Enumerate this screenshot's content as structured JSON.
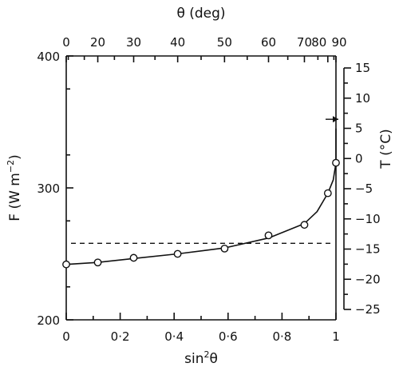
{
  "chart_data": {
    "type": "scatter",
    "title": "",
    "xlabel": "sin",
    "xlabel_sup": "2",
    "xlabel_tail": "θ",
    "ylabel": "F (W m",
    "ylabel_sup": "−2",
    "ylabel_tail": ")",
    "top_xlabel": "θ (deg)",
    "right_ylabel": "T (°C)",
    "xlim": [
      0,
      1
    ],
    "ylim": [
      200,
      400
    ],
    "right_ylim": [
      -25,
      15
    ],
    "x_ticks": [
      "0",
      "0·2",
      "0·4",
      "0·6",
      "0·8",
      "1"
    ],
    "x_tick_values": [
      0,
      0.2,
      0.4,
      0.6,
      0.8,
      1.0
    ],
    "y_ticks": [
      "200",
      "300",
      "400"
    ],
    "y_tick_values": [
      200,
      300,
      400
    ],
    "top_ticks": [
      "0",
      "20",
      "30",
      "40",
      "50",
      "60",
      "70",
      "80",
      "90"
    ],
    "top_tick_degrees": [
      0,
      20,
      30,
      40,
      50,
      60,
      70,
      80,
      90
    ],
    "right_ticks": [
      "15",
      "10",
      "5",
      "0",
      "−5",
      "−10",
      "−15",
      "−20",
      "−25"
    ],
    "right_tick_values": [
      15,
      10,
      5,
      0,
      -5,
      -10,
      -15,
      -20,
      -25
    ],
    "reference_line_F": 258,
    "marker_T": 6.5,
    "series": [
      {
        "marker": "open-circle",
        "x": [
          0.0,
          0.117,
          0.25,
          0.413,
          0.587,
          0.75,
          0.883,
          0.97,
          1.0
        ],
        "y": [
          242,
          243.5,
          247,
          250,
          254,
          264,
          272,
          296,
          319
        ]
      }
    ],
    "curve": {
      "x": [
        0.0,
        0.117,
        0.25,
        0.413,
        0.587,
        0.75,
        0.883,
        0.93,
        0.97,
        0.99,
        1.0,
        1.0
      ],
      "y": [
        242,
        243.5,
        246.5,
        250,
        254.5,
        262,
        273,
        282,
        296,
        306,
        319,
        345
      ]
    }
  }
}
